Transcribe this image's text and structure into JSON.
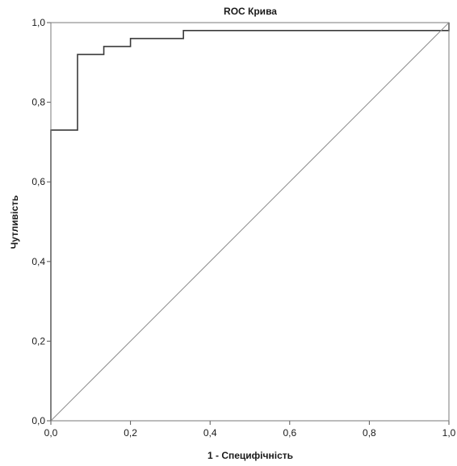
{
  "chart_data": {
    "type": "line",
    "title": "ROC Крива",
    "xlabel": "1 - Специфічність",
    "ylabel": "Чутливість",
    "xlim": [
      0,
      1
    ],
    "ylim": [
      0,
      1
    ],
    "x_ticks": [
      "0,0",
      "0,2",
      "0,4",
      "0,6",
      "0,8",
      "1,0"
    ],
    "y_ticks": [
      "0,0",
      "0,2",
      "0,4",
      "0,6",
      "0,8",
      "1,0"
    ],
    "grid": false,
    "legend": "none",
    "series": [
      {
        "kind": "roc-step",
        "color": "#3a3a3a",
        "points": [
          [
            0.0,
            0.0
          ],
          [
            0.0,
            0.73
          ],
          [
            0.067,
            0.73
          ],
          [
            0.067,
            0.92
          ],
          [
            0.133,
            0.92
          ],
          [
            0.133,
            0.94
          ],
          [
            0.2,
            0.94
          ],
          [
            0.2,
            0.96
          ],
          [
            0.333,
            0.96
          ],
          [
            0.333,
            0.98
          ],
          [
            1.0,
            0.98
          ],
          [
            1.0,
            1.0
          ]
        ]
      },
      {
        "kind": "reference-diagonal",
        "color": "#8c8c8c",
        "points": [
          [
            0.0,
            0.0
          ],
          [
            1.0,
            1.0
          ]
        ]
      }
    ]
  }
}
